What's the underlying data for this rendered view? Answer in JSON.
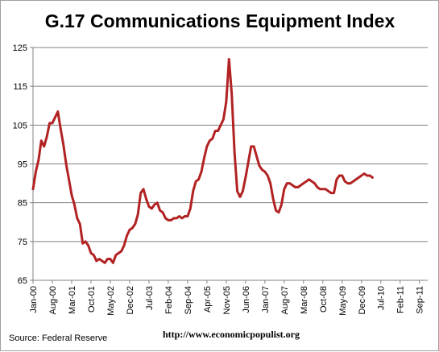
{
  "chart_data": {
    "type": "line",
    "title": "G.17 Communications Equipment Index",
    "xlabel": "",
    "ylabel": "",
    "ylim": [
      65,
      125
    ],
    "yticks": [
      65,
      75,
      85,
      95,
      105,
      115,
      125
    ],
    "xtick_labels": [
      "Jan-00",
      "Aug-00",
      "Mar-01",
      "Oct-01",
      "May-02",
      "Dec-02",
      "Jul-03",
      "Feb-04",
      "Sep-04",
      "Apr-05",
      "Nov-05",
      "Jun-06",
      "Jan-07",
      "Aug-07",
      "Mar-08",
      "Oct-08",
      "May-09",
      "Dec-09",
      "Jul-10",
      "Feb-11",
      "Sep-11"
    ],
    "xtick_months": [
      0,
      7,
      14,
      21,
      28,
      35,
      42,
      49,
      56,
      63,
      70,
      77,
      84,
      91,
      98,
      105,
      112,
      119,
      126,
      133,
      140
    ],
    "grid": "horizontal",
    "line_color": "#b22222",
    "series": [
      {
        "values": [
          88.5,
          93,
          96,
          101,
          99.5,
          102,
          105.5,
          105.5,
          107,
          108.5,
          104,
          100,
          95,
          91,
          87,
          84.5,
          81,
          79.5,
          74.5,
          75,
          74,
          72,
          71.5,
          70,
          70.5,
          70,
          69.5,
          70.5,
          70.5,
          69.5,
          71.5,
          72,
          72.5,
          74,
          76.5,
          78,
          78.5,
          79.5,
          82,
          87.5,
          88.5,
          86,
          84,
          83.5,
          84.5,
          85,
          83,
          82.5,
          81,
          80.5,
          80.5,
          81,
          81,
          81.5,
          81,
          81.5,
          81.5,
          83.5,
          88,
          90.5,
          91,
          93,
          96.5,
          99.5,
          101,
          101.5,
          103.5,
          103.5,
          105,
          106.5,
          111,
          122,
          113,
          98,
          88,
          86.5,
          88,
          91.5,
          95.5,
          99.5,
          99.5,
          97,
          94.5,
          93.5,
          93,
          92,
          90,
          86,
          83,
          82.5,
          84.5,
          88.5,
          90,
          90,
          89.5,
          89,
          89,
          89.5,
          90,
          90.5,
          91,
          90.5,
          90,
          89,
          88.5,
          88.5,
          88.5,
          88,
          87.5,
          87.5,
          91,
          92,
          92,
          90.5,
          90,
          90,
          90.5,
          91,
          91.5,
          92,
          92.5,
          92,
          92,
          91.5
        ]
      }
    ]
  },
  "footer": {
    "source": "Source:  Federal Reserve",
    "url": "http://www.economicpopulist.org"
  }
}
